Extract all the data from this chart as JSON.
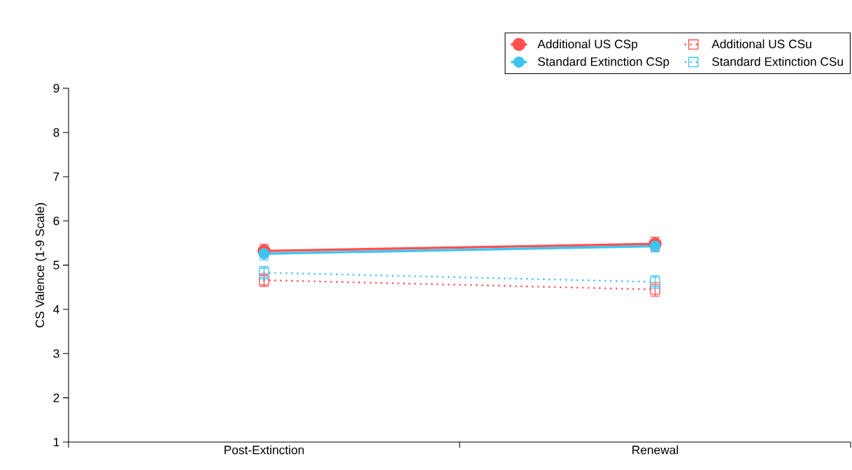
{
  "chart_data": {
    "type": "line",
    "ylabel": "CS Valence (1-9 Scale)",
    "categories": [
      "Post-Extinction",
      "Renewal"
    ],
    "series": [
      {
        "name": "Additional US CSp",
        "color": "#ff5050",
        "values": [
          5.32,
          5.48
        ],
        "errors": [
          0.15,
          0.15
        ],
        "marker": "circle",
        "line_style": "solid"
      },
      {
        "name": "Additional US CSu",
        "color": "#ff5050",
        "values": [
          4.66,
          4.45
        ],
        "errors": [
          0.14,
          0.15
        ],
        "marker": "square",
        "line_style": "dotted"
      },
      {
        "name": "Standard Extinction CSp",
        "color": "#3fc4f0",
        "values": [
          5.26,
          5.43
        ],
        "errors": [
          0.14,
          0.13
        ],
        "marker": "circle",
        "line_style": "solid"
      },
      {
        "name": "Standard Extinction CSu",
        "color": "#3fc4f0",
        "values": [
          4.83,
          4.62
        ],
        "errors": [
          0.14,
          0.14
        ],
        "marker": "square",
        "line_style": "dotted"
      }
    ],
    "ylim": [
      1,
      9
    ],
    "yticks": [
      1,
      2,
      3,
      4,
      5,
      6,
      7,
      8,
      9
    ],
    "legend": "top right",
    "grid": false
  }
}
